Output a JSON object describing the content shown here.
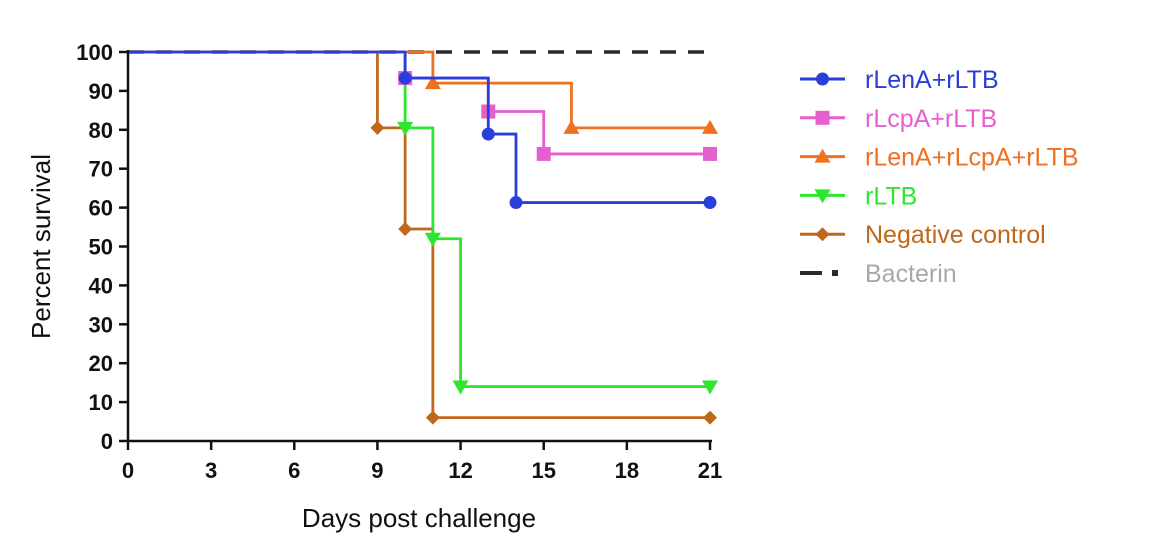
{
  "chart_data": {
    "type": "line",
    "title": "",
    "xlabel": "Days post challenge",
    "ylabel": "Percent survival",
    "xlim": [
      0,
      21
    ],
    "ylim": [
      0,
      100
    ],
    "x_ticks": [
      0,
      3,
      6,
      9,
      12,
      15,
      18,
      21
    ],
    "y_ticks": [
      0,
      10,
      20,
      30,
      40,
      50,
      60,
      70,
      80,
      90,
      100
    ],
    "grid": false,
    "legend_position": "right",
    "series": [
      {
        "name": "rLenA+rLTB",
        "color": "#2a3fd9",
        "marker": "circle",
        "dash": false,
        "steps": [
          [
            0,
            100
          ],
          [
            10,
            93.3
          ],
          [
            13,
            78.9
          ],
          [
            14,
            61.3
          ],
          [
            21,
            61.3
          ]
        ],
        "markers": [
          [
            10,
            93.3
          ],
          [
            13,
            78.9
          ],
          [
            14,
            61.3
          ],
          [
            21,
            61.3
          ]
        ]
      },
      {
        "name": "rLcpA+rLTB",
        "color": "#e65fcf",
        "marker": "square",
        "dash": false,
        "steps": [
          [
            0,
            100
          ],
          [
            10,
            93.3
          ],
          [
            13,
            84.7
          ],
          [
            15,
            73.8
          ],
          [
            21,
            73.8
          ]
        ],
        "markers": [
          [
            10,
            93.3
          ],
          [
            13,
            84.7
          ],
          [
            15,
            73.8
          ],
          [
            21,
            73.8
          ]
        ]
      },
      {
        "name": "rLenA+rLcpA+rLTB",
        "color": "#ee7020",
        "marker": "triangle-up",
        "dash": false,
        "steps": [
          [
            0,
            100
          ],
          [
            11,
            92
          ],
          [
            16,
            80.5
          ],
          [
            21,
            80.5
          ]
        ],
        "markers": [
          [
            11,
            92
          ],
          [
            16,
            80.5
          ],
          [
            21,
            80.5
          ]
        ]
      },
      {
        "name": "rLTB",
        "color": "#2ee62e",
        "marker": "triangle-down",
        "dash": false,
        "steps": [
          [
            0,
            100
          ],
          [
            10,
            80.5
          ],
          [
            11,
            52
          ],
          [
            12,
            14
          ],
          [
            21,
            14
          ]
        ],
        "markers": [
          [
            10,
            80.5
          ],
          [
            11,
            52
          ],
          [
            12,
            14
          ],
          [
            21,
            14
          ]
        ]
      },
      {
        "name": "Negative control",
        "color": "#c0681a",
        "marker": "diamond",
        "dash": false,
        "steps": [
          [
            0,
            100
          ],
          [
            9,
            80.5
          ],
          [
            10,
            54.5
          ],
          [
            11,
            6
          ],
          [
            21,
            6
          ]
        ],
        "markers": [
          [
            9,
            80.5
          ],
          [
            10,
            54.5
          ],
          [
            11,
            6
          ],
          [
            21,
            6
          ]
        ]
      },
      {
        "name": "Bacterin",
        "color": "#2a2a2a",
        "marker": "none",
        "dash": true,
        "steps": [
          [
            0,
            100
          ],
          [
            21,
            100
          ]
        ],
        "markers": []
      }
    ]
  },
  "legend_text_colors": {
    "rLenA+rLTB": "#2a3fd9",
    "rLcpA+rLTB": "#e65fcf",
    "rLenA+rLcpA+rLTB": "#ee7020",
    "rLTB": "#2ee62e",
    "Negative control": "#c0681a",
    "Bacterin": "#a8a8a8"
  }
}
